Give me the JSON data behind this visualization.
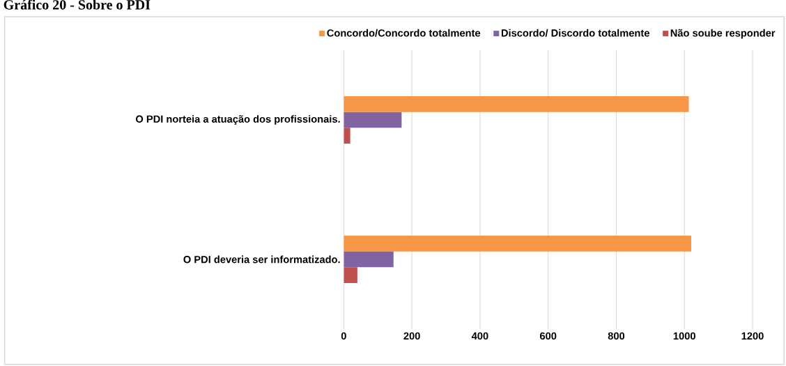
{
  "chart_data": {
    "type": "bar",
    "orientation": "horizontal",
    "title": "Gráfico 20 - Sobre o PDI",
    "categories": [
      "O PDI norteia a atuação dos profissionais.",
      "O PDI deveria ser informatizado."
    ],
    "series": [
      {
        "name": "Concordo/Concordo totalmente",
        "color": "#f79646",
        "values": [
          1013,
          1020
        ]
      },
      {
        "name": "Discordo/ Discordo totalmente",
        "color": "#8064a2",
        "values": [
          170,
          146
        ]
      },
      {
        "name": "Não soube responder",
        "color": "#c0504d",
        "values": [
          19,
          40
        ]
      }
    ],
    "xlim": [
      0,
      1200
    ],
    "xticks": [
      0,
      200,
      400,
      600,
      800,
      1000,
      1200
    ],
    "grid": "x",
    "legend": "top"
  }
}
